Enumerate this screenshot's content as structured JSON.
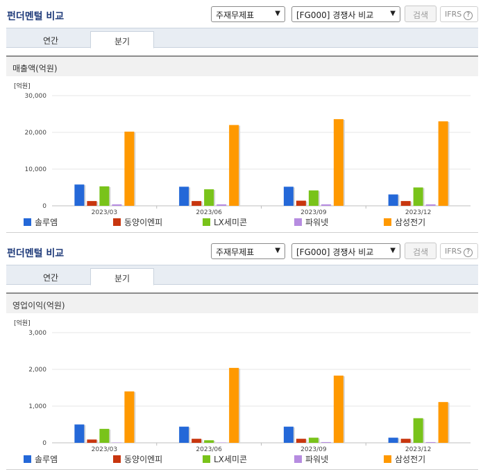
{
  "colors": {
    "solum": "#2468d8",
    "dongyang": "#c8360f",
    "lx": "#79c31a",
    "power": "#b68ce0",
    "samsung": "#ff9900"
  },
  "panels": [
    {
      "title": "펀더멘털 비교",
      "select_main": "주재무제표",
      "select_peer": "[FG000] 경쟁사 비교",
      "search_label": "검색",
      "ifrs_label": "IFRS",
      "ifrs_help": "?",
      "tabs": [
        {
          "label": "연간"
        },
        {
          "label": "분기"
        }
      ],
      "active_tab": 1,
      "section_title": "매출액(억원)",
      "chart_data": {
        "type": "bar",
        "unit": "[억원]",
        "categories": [
          "2023/03",
          "2023/06",
          "2023/09",
          "2023/12"
        ],
        "ylim": [
          0,
          30000
        ],
        "yticks": [
          0,
          10000,
          20000,
          30000
        ],
        "ytick_labels": [
          "0",
          "10,000",
          "20,000",
          "30,000"
        ],
        "series": [
          {
            "name": "솔루엠",
            "values": [
              5800,
              5200,
              5200,
              3100
            ]
          },
          {
            "name": "동양이엔피",
            "values": [
              1300,
              1300,
              1400,
              1300
            ]
          },
          {
            "name": "LX세미콘",
            "values": [
              5300,
              4500,
              4200,
              5000
            ]
          },
          {
            "name": "파워넷",
            "values": [
              400,
              400,
              400,
              400
            ]
          },
          {
            "name": "삼성전기",
            "values": [
              20200,
              22000,
              23600,
              23000
            ]
          }
        ],
        "legend": "bottom"
      }
    },
    {
      "title": "펀더멘털 비교",
      "select_main": "주재무제표",
      "select_peer": "[FG000] 경쟁사 비교",
      "search_label": "검색",
      "ifrs_label": "IFRS",
      "ifrs_help": "?",
      "tabs": [
        {
          "label": "연간"
        },
        {
          "label": "분기"
        }
      ],
      "active_tab": 1,
      "section_title": "영업이익(억원)",
      "chart_data": {
        "type": "bar",
        "unit": "[억원]",
        "categories": [
          "2023/03",
          "2023/06",
          "2023/09",
          "2023/12"
        ],
        "ylim": [
          0,
          3000
        ],
        "yticks": [
          0,
          1000,
          2000,
          3000
        ],
        "ytick_labels": [
          "0",
          "1,000",
          "2,000",
          "3,000"
        ],
        "series": [
          {
            "name": "솔루엠",
            "values": [
              500,
              440,
              440,
              140
            ]
          },
          {
            "name": "동양이엔피",
            "values": [
              90,
              110,
              110,
              110
            ]
          },
          {
            "name": "LX세미콘",
            "values": [
              380,
              70,
              140,
              670
            ]
          },
          {
            "name": "파워넷",
            "values": [
              10,
              10,
              20,
              20
            ]
          },
          {
            "name": "삼성전기",
            "values": [
              1400,
              2040,
              1830,
              1110
            ]
          }
        ],
        "legend": "bottom"
      }
    }
  ]
}
